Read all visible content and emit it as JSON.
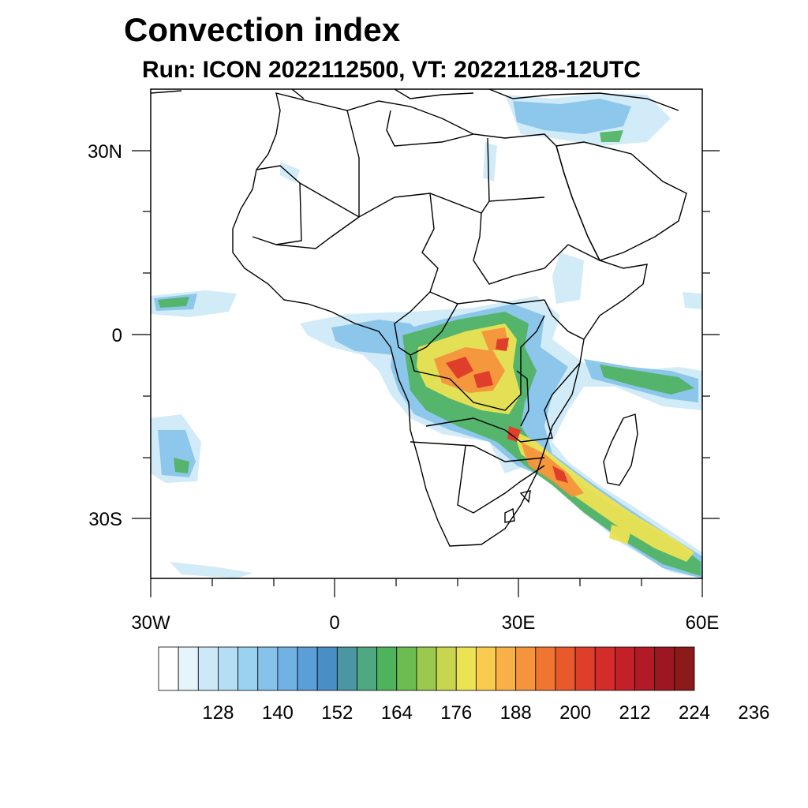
{
  "title": "Convection index",
  "subtitle": "Run: ICON 2022112500,  VT: 20221128-12UTC",
  "map": {
    "lon_range": [
      -30,
      60
    ],
    "lat_range": [
      -40,
      40
    ],
    "x_tick_labels": [
      {
        "lon": -30,
        "label": "30W"
      },
      {
        "lon": 0,
        "label": "0"
      },
      {
        "lon": 30,
        "label": "30E"
      },
      {
        "lon": 60,
        "label": "60E"
      }
    ],
    "y_tick_labels": [
      {
        "lat": 30,
        "label": "30N"
      },
      {
        "lat": 0,
        "label": "0"
      },
      {
        "lat": -30,
        "label": "30S"
      }
    ]
  },
  "colorbar": {
    "colors": [
      "#ffffff",
      "#e6f4fb",
      "#cde9f7",
      "#b3def3",
      "#9ad3ef",
      "#85c3ea",
      "#71b2e4",
      "#5b9ed8",
      "#4a8ec6",
      "#4a97a3",
      "#4ea882",
      "#4fb35e",
      "#6cbd4f",
      "#9bc94e",
      "#c7d54f",
      "#ece354",
      "#f9cc4f",
      "#f8b047",
      "#f5943c",
      "#ef7531",
      "#e8592b",
      "#df3f2a",
      "#d42b2b",
      "#c4202a",
      "#b11a26",
      "#9c1722",
      "#8b1a1a"
    ],
    "labels": [
      "128",
      "140",
      "152",
      "164",
      "176",
      "188",
      "200",
      "212",
      "224",
      "236"
    ]
  }
}
